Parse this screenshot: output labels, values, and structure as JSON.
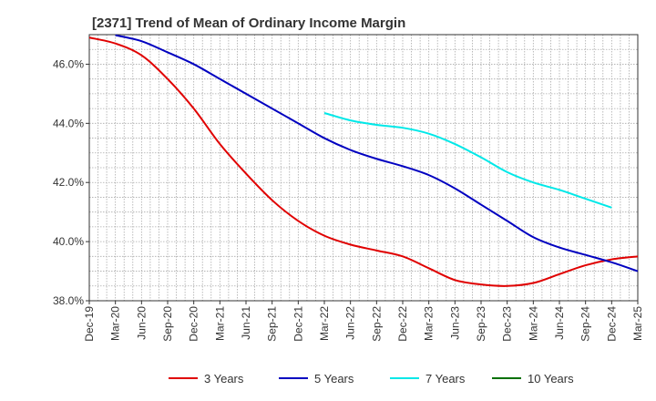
{
  "chart_data": {
    "type": "line",
    "title": "[2371]  Trend of Mean of Ordinary Income Margin",
    "xlabel": "",
    "ylabel": "",
    "ylim": [
      38.0,
      47.0
    ],
    "yticks": [
      38.0,
      40.0,
      42.0,
      44.0,
      46.0
    ],
    "ytick_labels": [
      "38.0%",
      "40.0%",
      "42.0%",
      "44.0%",
      "46.0%"
    ],
    "x_labels": [
      "Dec-19",
      "Mar-20",
      "Jun-20",
      "Sep-20",
      "Dec-20",
      "Mar-21",
      "Jun-21",
      "Sep-21",
      "Dec-21",
      "Mar-22",
      "Jun-22",
      "Sep-22",
      "Dec-22",
      "Mar-23",
      "Jun-23",
      "Sep-23",
      "Dec-23",
      "Mar-24",
      "Jun-24",
      "Sep-24",
      "Dec-24",
      "Mar-25"
    ],
    "grid": true,
    "legend_position": "bottom",
    "series": [
      {
        "name": "3 Years",
        "color": "#e00000",
        "start_index": 0,
        "values": [
          46.9,
          46.7,
          46.3,
          45.5,
          44.5,
          43.3,
          42.3,
          41.4,
          40.7,
          40.2,
          39.9,
          39.7,
          39.5,
          39.1,
          38.7,
          38.55,
          38.5,
          38.6,
          38.9,
          39.2,
          39.4,
          39.5
        ]
      },
      {
        "name": "5 Years",
        "color": "#0000c0",
        "start_index": 1,
        "values": [
          46.98,
          46.78,
          46.4,
          46.0,
          45.5,
          45.0,
          44.5,
          44.0,
          43.5,
          43.1,
          42.8,
          42.55,
          42.25,
          41.8,
          41.25,
          40.7,
          40.15,
          39.8,
          39.55,
          39.3,
          39.0
        ]
      },
      {
        "name": "7 Years",
        "color": "#00e8e8",
        "start_index": 9,
        "values": [
          44.35,
          44.1,
          43.95,
          43.85,
          43.65,
          43.3,
          42.85,
          42.35,
          42.0,
          41.75,
          41.45,
          41.15
        ]
      },
      {
        "name": "10 Years",
        "color": "#007000",
        "start_index": 0,
        "values": []
      }
    ]
  }
}
